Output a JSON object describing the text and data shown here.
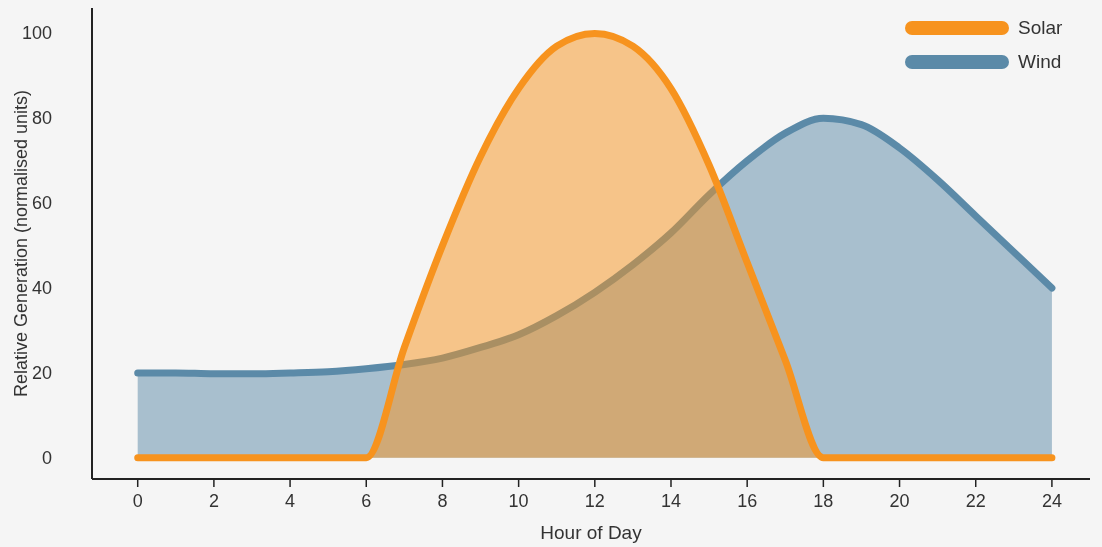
{
  "chart_data": {
    "type": "area",
    "xlabel": "Hour of Day",
    "ylabel": "Relative Generation (normalised units)",
    "xlim": [
      -1.2,
      25
    ],
    "xticks": [
      0,
      2,
      4,
      6,
      8,
      10,
      12,
      14,
      16,
      18,
      20,
      22,
      24
    ],
    "ylim": [
      -5,
      106
    ],
    "yticks": [
      0,
      20,
      40,
      60,
      80,
      100
    ],
    "grid": false,
    "legend": "top right",
    "line_style": "solid",
    "marker": "none",
    "series": [
      {
        "name": "Wind",
        "color": "#5b8aa8",
        "x": [
          0,
          1,
          2,
          3,
          4,
          5,
          6,
          7,
          8,
          9,
          10,
          11,
          12,
          13,
          14,
          15,
          16,
          17,
          18,
          19,
          20,
          21,
          22,
          23,
          24
        ],
        "values": [
          20,
          20,
          19.8,
          19.8,
          20,
          20.3,
          21,
          22,
          23.5,
          26,
          29,
          33.5,
          39,
          45.5,
          53,
          62,
          70,
          76.5,
          80,
          78.5,
          73,
          65.5,
          57,
          48.5,
          40
        ]
      },
      {
        "name": "Solar",
        "color": "#f7931e",
        "x": [
          0,
          1,
          2,
          3,
          4,
          5,
          6,
          7,
          8,
          9,
          10,
          11,
          12,
          13,
          14,
          15,
          16,
          17,
          18,
          19,
          20,
          21,
          22,
          23,
          24
        ],
        "values": [
          0,
          0,
          0,
          0,
          0,
          0,
          0,
          26,
          50,
          71,
          87,
          97,
          100,
          97,
          87,
          69,
          46,
          23,
          0,
          0,
          0,
          0,
          0,
          0,
          0
        ]
      }
    ]
  }
}
